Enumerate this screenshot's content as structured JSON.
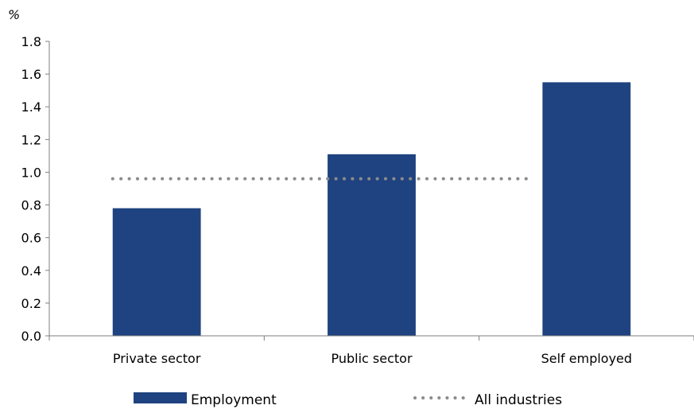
{
  "chart_data": {
    "type": "bar",
    "title": "",
    "ylabel": "%",
    "xlabel": "",
    "categories": [
      "Private sector",
      "Public sector",
      "Self employed"
    ],
    "series": [
      {
        "name": "Employment",
        "type": "bar",
        "values": [
          0.78,
          1.11,
          1.55
        ],
        "color": "#1f4380"
      }
    ],
    "reference_lines": [
      {
        "name": "All industries",
        "style": "dotted",
        "value": 0.96,
        "color": "#8c8c8c"
      }
    ],
    "ylim": [
      0,
      1.8
    ],
    "yticks": [
      "0.0",
      "0.2",
      "0.4",
      "0.6",
      "0.8",
      "1.0",
      "1.2",
      "1.4",
      "1.6",
      "1.8"
    ],
    "grid": false,
    "legend": {
      "position": "bottom"
    }
  }
}
